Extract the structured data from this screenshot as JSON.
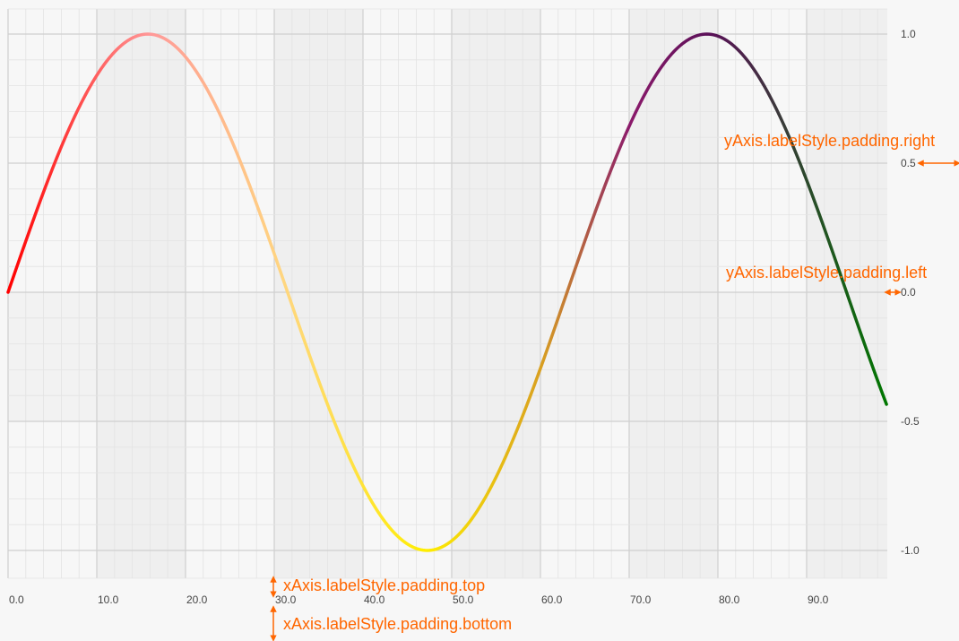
{
  "chart_data": {
    "type": "line",
    "x_ticks": [
      "0.0",
      "10.0",
      "20.0",
      "30.0",
      "40.0",
      "50.0",
      "60.0",
      "70.0",
      "80.0",
      "90.0"
    ],
    "y_ticks": [
      "1.0",
      "0.5",
      "0.0",
      "-0.5",
      "-1.0"
    ],
    "xlim": [
      0,
      99
    ],
    "ylim": [
      -1.1,
      1.0
    ],
    "y_axis_side": "right",
    "grid": true,
    "series": [
      {
        "function": "sin(2*pi*x/63)",
        "x_start": 0,
        "x_end": 99,
        "gradient_stops": [
          {
            "x": 0,
            "color": "#ff0000"
          },
          {
            "x": 16,
            "color": "#ff9999"
          },
          {
            "x": 31,
            "color": "#ffd680"
          },
          {
            "x": 47,
            "color": "#ffee00"
          },
          {
            "x": 60,
            "color": "#d9a020"
          },
          {
            "x": 70,
            "color": "#8b1a6b"
          },
          {
            "x": 79,
            "color": "#5a1058"
          },
          {
            "x": 87,
            "color": "#3a3a3a"
          },
          {
            "x": 99,
            "color": "#007700"
          }
        ]
      }
    ],
    "annotations": {
      "y_right": "yAxis.labelStyle.padding.right",
      "y_left": "yAxis.labelStyle.padding.left",
      "x_top": "xAxis.labelStyle.padding.top",
      "x_bottom": "xAxis.labelStyle.padding.bottom"
    },
    "colors": {
      "accent": "#ff6600",
      "grid_major": "#cfcfcf",
      "grid_minor": "#e3e3e3",
      "band_dark": "#efefef",
      "band_light": "#f7f7f7"
    }
  }
}
